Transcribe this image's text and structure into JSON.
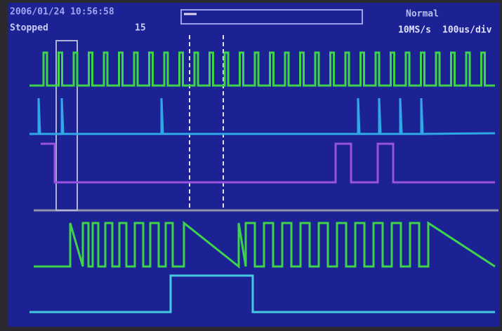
{
  "header": {
    "timestamp": "2006/01/24 10:56:58",
    "status": "Stopped",
    "count": "15",
    "mode": "Normal",
    "sample_rate": "10MS/s",
    "time_div": "100us/div"
  }
}
